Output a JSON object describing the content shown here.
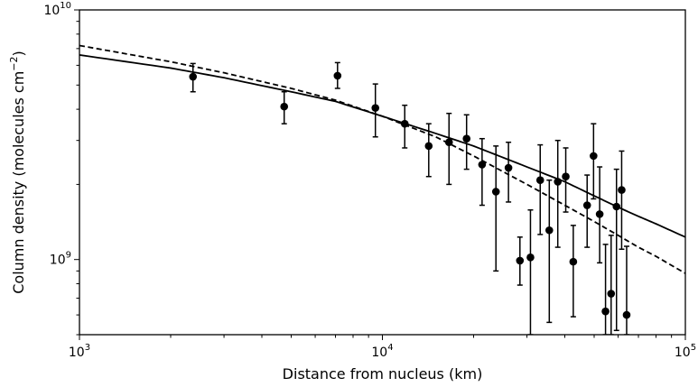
{
  "chart_data": {
    "type": "scatter",
    "title": "",
    "xlabel": "Distance from nucleus (km)",
    "ylabel": "Column density (molecules cm",
    "ylabel_unit_exponent": "−2",
    "ylabel_close": ")",
    "xscale": "log",
    "yscale": "log",
    "xlim": [
      1000,
      100000
    ],
    "ylim": [
      500000000,
      10000000000
    ],
    "x_ticks": [
      {
        "value": 1000,
        "base": "10",
        "exp": "3"
      },
      {
        "value": 10000,
        "base": "10",
        "exp": "4"
      },
      {
        "value": 100000,
        "base": "10",
        "exp": "5"
      }
    ],
    "y_ticks": [
      {
        "value": 1000000000,
        "base": "10",
        "exp": "9"
      },
      {
        "value": 10000000000,
        "base": "10",
        "exp": "10"
      }
    ],
    "grid": false,
    "legend": "none",
    "series": [
      {
        "kind": "points_with_errorbars",
        "color": "#000000",
        "points": [
          {
            "x": 2370,
            "y": 5400000000.0,
            "err_low": 4700000000.0,
            "err_high": 6100000000.0
          },
          {
            "x": 4740,
            "y": 4100000000.0,
            "err_low": 3500000000.0,
            "err_high": 4700000000.0
          },
          {
            "x": 7110,
            "y": 5450000000.0,
            "err_low": 4850000000.0,
            "err_high": 6150000000.0
          },
          {
            "x": 9480,
            "y": 4050000000.0,
            "err_low": 3100000000.0,
            "err_high": 5050000000.0
          },
          {
            "x": 11850,
            "y": 3500000000.0,
            "err_low": 2800000000.0,
            "err_high": 4150000000.0
          },
          {
            "x": 14220,
            "y": 2850000000.0,
            "err_low": 2150000000.0,
            "err_high": 3500000000.0
          },
          {
            "x": 16590,
            "y": 2950000000.0,
            "err_low": 2000000000.0,
            "err_high": 3850000000.0
          },
          {
            "x": 18960,
            "y": 3050000000.0,
            "err_low": 2300000000.0,
            "err_high": 3800000000.0
          },
          {
            "x": 21330,
            "y": 2400000000.0,
            "err_low": 1650000000.0,
            "err_high": 3050000000.0
          },
          {
            "x": 23700,
            "y": 1870000000.0,
            "err_low": 900000000.0,
            "err_high": 2850000000.0
          },
          {
            "x": 26070,
            "y": 2330000000.0,
            "err_low": 1700000000.0,
            "err_high": 2950000000.0
          },
          {
            "x": 28440,
            "y": 990000000.0,
            "err_low": 790000000.0,
            "err_high": 1230000000.0
          },
          {
            "x": 30810,
            "y": 1020000000.0,
            "err_low": 500000000.0,
            "err_high": 1580000000.0
          },
          {
            "x": 33180,
            "y": 2080000000.0,
            "err_low": 1260000000.0,
            "err_high": 2880000000.0
          },
          {
            "x": 35550,
            "y": 1310000000.0,
            "err_low": 560000000.0,
            "err_high": 2080000000.0
          },
          {
            "x": 37920,
            "y": 2050000000.0,
            "err_low": 1120000000.0,
            "err_high": 3000000000.0
          },
          {
            "x": 40290,
            "y": 2150000000.0,
            "err_low": 1550000000.0,
            "err_high": 2800000000.0
          },
          {
            "x": 42660,
            "y": 980000000.0,
            "err_low": 590000000.0,
            "err_high": 1370000000.0
          },
          {
            "x": 47400,
            "y": 1650000000.0,
            "err_low": 1120000000.0,
            "err_high": 2180000000.0
          },
          {
            "x": 49770,
            "y": 2600000000.0,
            "err_low": 1750000000.0,
            "err_high": 3500000000.0
          },
          {
            "x": 52140,
            "y": 1520000000.0,
            "err_low": 970000000.0,
            "err_high": 2350000000.0
          },
          {
            "x": 54510,
            "y": 620000000.0,
            "err_low": 500000000.0,
            "err_high": 1150000000.0
          },
          {
            "x": 56880,
            "y": 730000000.0,
            "err_low": 500000000.0,
            "err_high": 1250000000.0
          },
          {
            "x": 59250,
            "y": 1630000000.0,
            "err_low": 520000000.0,
            "err_high": 2300000000.0
          },
          {
            "x": 61620,
            "y": 1900000000.0,
            "err_low": 1100000000.0,
            "err_high": 2720000000.0
          },
          {
            "x": 64000,
            "y": 600000000.0,
            "err_low": 500000000.0,
            "err_high": 1130000000.0
          }
        ]
      },
      {
        "kind": "line",
        "style": "solid",
        "color": "#000000",
        "x": [
          1000,
          2000,
          3000,
          5000,
          7000,
          10000,
          15000,
          20000,
          30000,
          40000,
          50000,
          60000,
          70000,
          80000,
          100000
        ],
        "y": [
          6600000000.0,
          5850000000.0,
          5350000000.0,
          4700000000.0,
          4300000000.0,
          3750000000.0,
          3200000000.0,
          2850000000.0,
          2350000000.0,
          2050000000.0,
          1800000000.0,
          1620000000.0,
          1490000000.0,
          1390000000.0,
          1230000000.0
        ]
      },
      {
        "kind": "line",
        "style": "dashed",
        "color": "#000000",
        "x": [
          1000,
          2000,
          3000,
          5000,
          7000,
          10000,
          15000,
          20000,
          30000,
          40000,
          50000,
          60000,
          70000,
          80000,
          100000
        ],
        "y": [
          7200000000.0,
          6200000000.0,
          5600000000.0,
          4850000000.0,
          4350000000.0,
          3750000000.0,
          3100000000.0,
          2600000000.0,
          2000000000.0,
          1650000000.0,
          1420000000.0,
          1250000000.0,
          1120000000.0,
          1030000000.0,
          880000000.0
        ]
      }
    ]
  }
}
